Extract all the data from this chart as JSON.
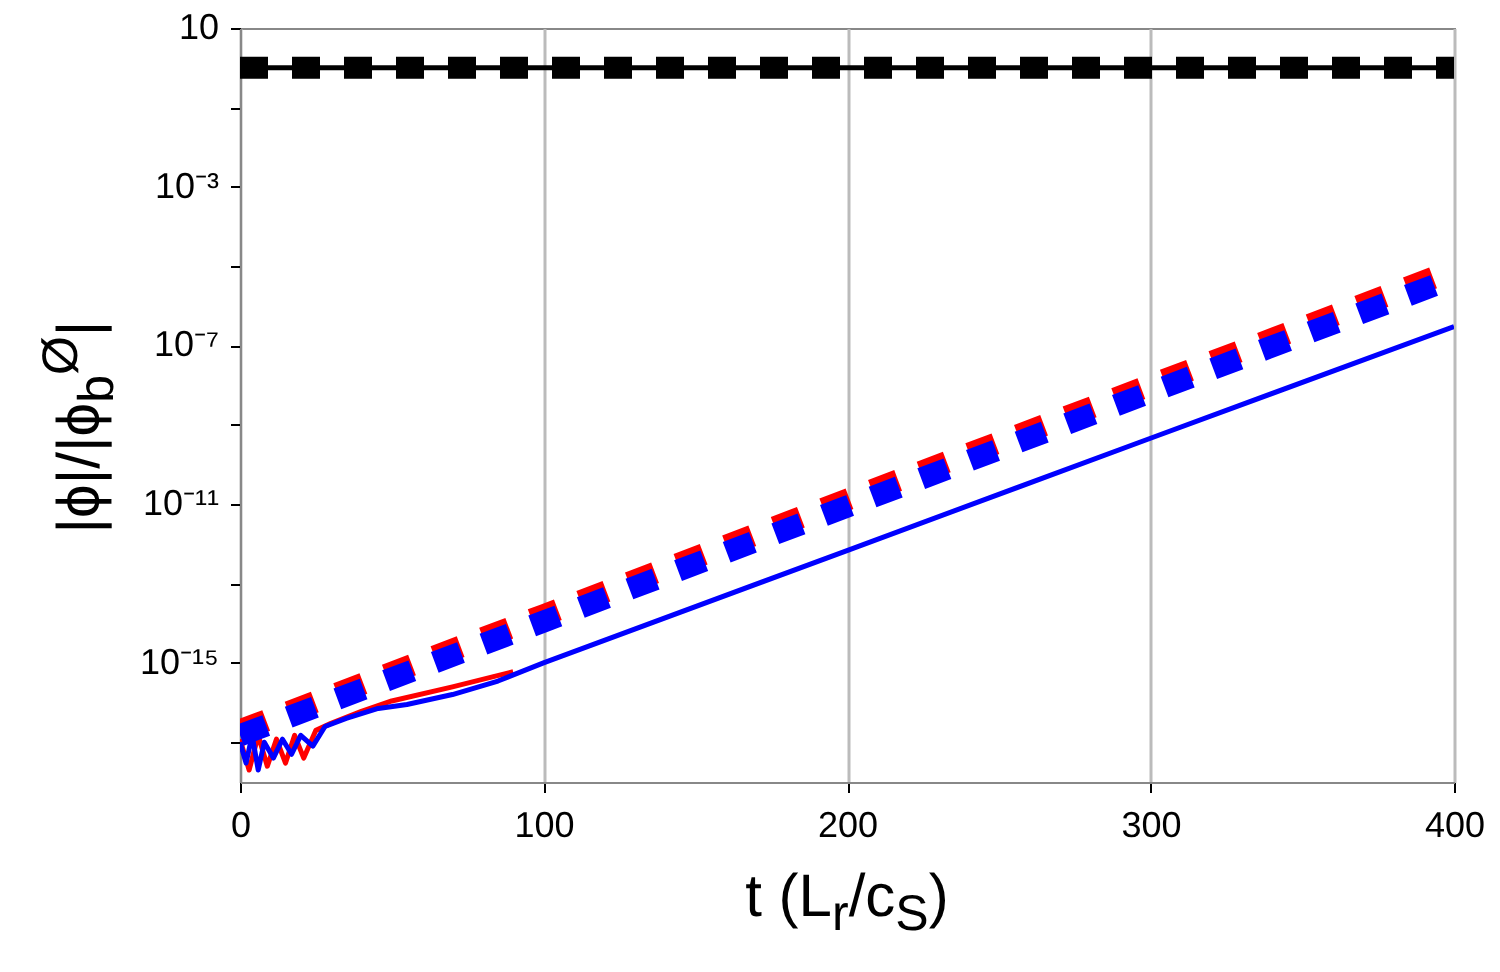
{
  "chart_data": {
    "type": "line",
    "xlabel": "t (L$_{r}$/c$_{S}$)",
    "ylabel": "|ϕ|/|ϕ$_{b}$$^{Ø}$|",
    "log": "y",
    "grid": "x",
    "marker": "none",
    "xlim": [
      0,
      400
    ],
    "xticks": [
      0,
      100,
      200,
      300,
      400
    ],
    "ylim": [
      1e-18,
      10
    ],
    "yticks": [
      {
        "value": 1e-17,
        "label": null
      },
      {
        "value": 1e-15,
        "label": "10⁻¹⁵"
      },
      {
        "value": 1e-13,
        "label": null
      },
      {
        "value": 1e-11,
        "label": "10⁻¹¹"
      },
      {
        "value": 1e-09,
        "label": null
      },
      {
        "value": 1e-07,
        "label": "10⁻⁷"
      },
      {
        "value": 1e-05,
        "label": null
      },
      {
        "value": 0.001,
        "label": "10⁻³"
      },
      {
        "value": 0.1,
        "label": null
      },
      10
    ],
    "series": [
      {
        "color": "#000000",
        "line_style": "solid",
        "x": [
          0,
          400
        ],
        "values": [
          1,
          1
        ]
      },
      {
        "color": "#000000",
        "line_style": "dashed",
        "x": [
          0,
          400
        ],
        "values": [
          1,
          1
        ]
      },
      {
        "color": "#ff0000",
        "line_style": "solid",
        "x": [
          0,
          3,
          6,
          9,
          12,
          15,
          18,
          21,
          25,
          30,
          40,
          50,
          70,
          90
        ],
        "values": [
          1.2e-17,
          2e-18,
          1.5e-17,
          2.5e-18,
          1.2e-17,
          3e-18,
          1.5e-17,
          4e-18,
          2e-17,
          3e-17,
          6e-17,
          1.1e-16,
          2.5e-16,
          6e-16
        ]
      },
      {
        "color": "#0000ff",
        "line_style": "solid",
        "x": [
          0,
          2,
          4,
          6,
          8,
          11,
          14,
          17,
          20,
          24,
          28,
          35,
          45,
          55,
          70,
          85,
          100,
          200,
          300,
          400
        ],
        "values": [
          1e-17,
          3e-18,
          1.5e-17,
          2e-18,
          1e-17,
          4e-18,
          1.2e-17,
          5e-18,
          1.5e-17,
          8e-18,
          2.5e-17,
          4e-17,
          7e-17,
          9e-17,
          1.6e-16,
          3.5e-16,
          1e-15,
          6.8e-13,
          4.6e-10,
          3e-07
        ]
      },
      {
        "color": "#ff0000",
        "line_style": "dashed",
        "x": [
          0,
          100,
          200,
          300,
          400
        ],
        "values": [
          2e-17,
          1.6e-14,
          1.3e-11,
          1e-08,
          8e-06
        ]
      },
      {
        "color": "#0000ff",
        "line_style": "dashed",
        "x": [
          0,
          100,
          200,
          300,
          400
        ],
        "values": [
          1.5e-17,
          1.1e-14,
          8.7e-12,
          6.6e-09,
          5e-06
        ]
      }
    ]
  }
}
